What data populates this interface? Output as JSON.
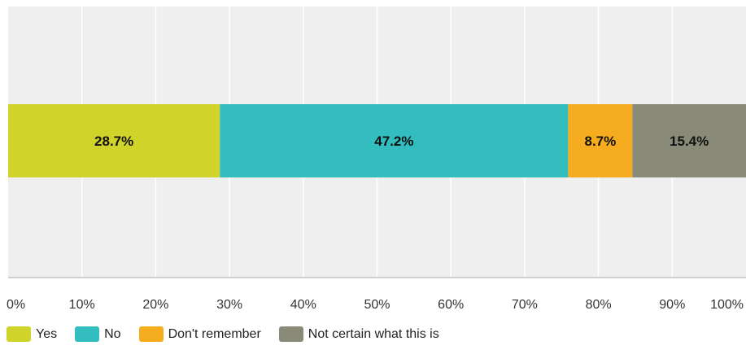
{
  "chart_data": {
    "type": "bar",
    "orientation": "horizontal",
    "stacked": true,
    "title": "",
    "xlabel": "",
    "ylabel": "",
    "xlim": [
      0,
      100
    ],
    "x_ticks": [
      "0%",
      "10%",
      "20%",
      "30%",
      "40%",
      "50%",
      "60%",
      "70%",
      "80%",
      "90%",
      "100%"
    ],
    "grid": true,
    "legend_position": "bottom-left",
    "series": [
      {
        "name": "Yes",
        "value": 28.7,
        "label": "28.7%",
        "color": "#d0d42a"
      },
      {
        "name": "No",
        "value": 47.2,
        "label": "47.2%",
        "color": "#33bdbf"
      },
      {
        "name": "Don't remember",
        "value": 8.7,
        "label": "8.7%",
        "color": "#f5ad1f"
      },
      {
        "name": "Not certain what this is",
        "value": 15.4,
        "label": "15.4%",
        "color": "#8a8a78"
      }
    ]
  }
}
